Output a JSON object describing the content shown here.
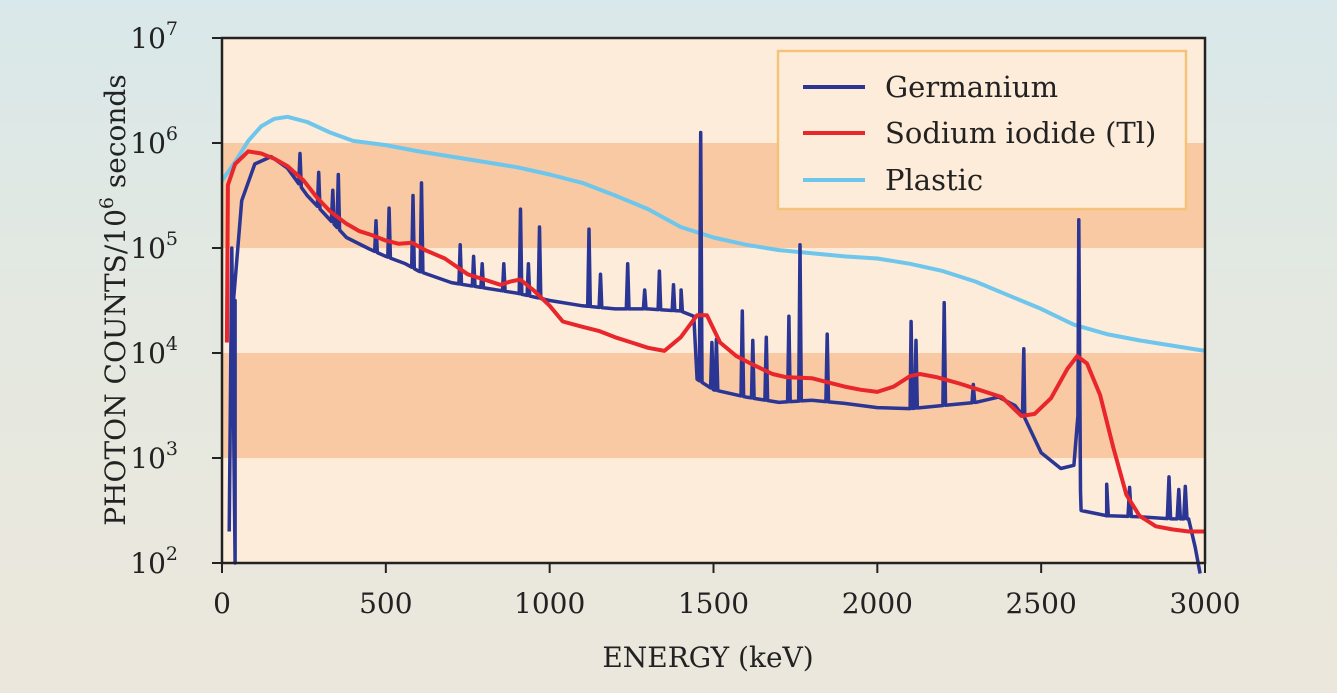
{
  "chart_data": {
    "type": "line",
    "title": "",
    "xlabel": "ENERGY (keV)",
    "ylabel_main": "PHOTON COUNTS/10",
    "ylabel_exp": "6",
    "ylabel_unit": " seconds",
    "xlim": [
      0,
      3000
    ],
    "ylim_log10": [
      2,
      7
    ],
    "y_scale": "log",
    "grid": "alternating horizontal bands",
    "x_ticks": [
      {
        "value": 0,
        "label": "0"
      },
      {
        "value": 500,
        "label": "500"
      },
      {
        "value": 1000,
        "label": "1000"
      },
      {
        "value": 1500,
        "label": "1500"
      },
      {
        "value": 2000,
        "label": "2000"
      },
      {
        "value": 2500,
        "label": "2500"
      },
      {
        "value": 3000,
        "label": "3000"
      }
    ],
    "y_ticks": [
      {
        "exp": 2,
        "base": "10",
        "sup": "2"
      },
      {
        "exp": 3,
        "base": "10",
        "sup": "3"
      },
      {
        "exp": 4,
        "base": "10",
        "sup": "4"
      },
      {
        "exp": 5,
        "base": "10",
        "sup": "5"
      },
      {
        "exp": 6,
        "base": "10",
        "sup": "6"
      },
      {
        "exp": 7,
        "base": "10",
        "sup": "7"
      }
    ],
    "legend_position": "top-right",
    "colors": {
      "germanium": "#2b3594",
      "sodium_iodide": "#e8262b",
      "plastic": "#6ec6ec",
      "band_dark": "#f8c9a3",
      "band_light": "#fdecd9",
      "legend_border": "#f5c27a"
    },
    "series": [
      {
        "name": "Germanium",
        "color": "#2b3594",
        "baseline": [
          [
            35,
            4.5
          ],
          [
            60,
            5.45
          ],
          [
            100,
            5.8
          ],
          [
            150,
            5.87
          ],
          [
            200,
            5.76
          ],
          [
            260,
            5.5
          ],
          [
            320,
            5.3
          ],
          [
            380,
            5.1
          ],
          [
            450,
            4.99
          ],
          [
            500,
            4.92
          ],
          [
            560,
            4.85
          ],
          [
            600,
            4.78
          ],
          [
            700,
            4.67
          ],
          [
            800,
            4.62
          ],
          [
            900,
            4.57
          ],
          [
            1000,
            4.5
          ],
          [
            1100,
            4.45
          ],
          [
            1200,
            4.42
          ],
          [
            1300,
            4.42
          ],
          [
            1400,
            4.4
          ],
          [
            1440,
            4.35
          ],
          [
            1450,
            3.75
          ],
          [
            1500,
            3.65
          ],
          [
            1600,
            3.58
          ],
          [
            1700,
            3.53
          ],
          [
            1800,
            3.55
          ],
          [
            1900,
            3.52
          ],
          [
            2000,
            3.48
          ],
          [
            2100,
            3.47
          ],
          [
            2200,
            3.5
          ],
          [
            2300,
            3.53
          ],
          [
            2370,
            3.58
          ],
          [
            2420,
            3.5
          ],
          [
            2450,
            3.38
          ],
          [
            2500,
            3.05
          ],
          [
            2560,
            2.9
          ],
          [
            2600,
            2.93
          ],
          [
            2612,
            3.4
          ],
          [
            2622,
            2.5
          ],
          [
            2700,
            2.45
          ],
          [
            2800,
            2.44
          ],
          [
            2900,
            2.42
          ],
          [
            2950,
            2.42
          ],
          [
            2970,
            2.15
          ],
          [
            2985,
            1.9
          ]
        ],
        "lines": [
          [
            238,
            5.9
          ],
          [
            295,
            5.72
          ],
          [
            338,
            5.55
          ],
          [
            355,
            5.7
          ],
          [
            470,
            5.26
          ],
          [
            510,
            5.38
          ],
          [
            583,
            5.5
          ],
          [
            609,
            5.62
          ],
          [
            727,
            5.03
          ],
          [
            768,
            4.92
          ],
          [
            794,
            4.85
          ],
          [
            860,
            4.85
          ],
          [
            911,
            5.37
          ],
          [
            935,
            4.85
          ],
          [
            969,
            5.2
          ],
          [
            1120,
            5.18
          ],
          [
            1155,
            4.75
          ],
          [
            1238,
            4.85
          ],
          [
            1290,
            4.6
          ],
          [
            1335,
            4.78
          ],
          [
            1378,
            4.65
          ],
          [
            1401,
            4.6
          ],
          [
            1461,
            6.1
          ],
          [
            1495,
            4.1
          ],
          [
            1509,
            4.13
          ],
          [
            1588,
            4.4
          ],
          [
            1620,
            4.12
          ],
          [
            1661,
            4.15
          ],
          [
            1730,
            4.35
          ],
          [
            1764,
            5.03
          ],
          [
            1847,
            4.18
          ],
          [
            2103,
            4.3
          ],
          [
            2118,
            4.12
          ],
          [
            2204,
            4.48
          ],
          [
            2293,
            3.7
          ],
          [
            2447,
            4.04
          ],
          [
            2615,
            5.27
          ],
          [
            2700,
            2.75
          ],
          [
            2770,
            2.72
          ],
          [
            2890,
            2.82
          ],
          [
            2920,
            2.7
          ],
          [
            2940,
            2.73
          ]
        ],
        "low_energy": [
          [
            40,
            2.0
          ],
          [
            30,
            5.0
          ],
          [
            22,
            2.3
          ]
        ]
      },
      {
        "name": "Sodium iodide (Tl)",
        "color": "#e8262b",
        "points": [
          [
            15,
            4.1
          ],
          [
            18,
            5.6
          ],
          [
            40,
            5.8
          ],
          [
            80,
            5.92
          ],
          [
            120,
            5.9
          ],
          [
            160,
            5.85
          ],
          [
            200,
            5.78
          ],
          [
            250,
            5.64
          ],
          [
            290,
            5.48
          ],
          [
            330,
            5.35
          ],
          [
            380,
            5.23
          ],
          [
            420,
            5.16
          ],
          [
            460,
            5.12
          ],
          [
            500,
            5.07
          ],
          [
            540,
            5.04
          ],
          [
            580,
            5.05
          ],
          [
            620,
            4.98
          ],
          [
            680,
            4.9
          ],
          [
            750,
            4.75
          ],
          [
            800,
            4.7
          ],
          [
            850,
            4.65
          ],
          [
            880,
            4.68
          ],
          [
            910,
            4.7
          ],
          [
            950,
            4.6
          ],
          [
            1000,
            4.45
          ],
          [
            1040,
            4.3
          ],
          [
            1100,
            4.25
          ],
          [
            1150,
            4.21
          ],
          [
            1200,
            4.15
          ],
          [
            1250,
            4.1
          ],
          [
            1300,
            4.05
          ],
          [
            1350,
            4.02
          ],
          [
            1400,
            4.15
          ],
          [
            1450,
            4.36
          ],
          [
            1480,
            4.36
          ],
          [
            1520,
            4.1
          ],
          [
            1570,
            3.97
          ],
          [
            1620,
            3.89
          ],
          [
            1680,
            3.8
          ],
          [
            1720,
            3.77
          ],
          [
            1800,
            3.76
          ],
          [
            1850,
            3.72
          ],
          [
            1900,
            3.68
          ],
          [
            1950,
            3.65
          ],
          [
            2000,
            3.63
          ],
          [
            2050,
            3.68
          ],
          [
            2100,
            3.78
          ],
          [
            2130,
            3.8
          ],
          [
            2180,
            3.77
          ],
          [
            2250,
            3.71
          ],
          [
            2320,
            3.64
          ],
          [
            2380,
            3.58
          ],
          [
            2440,
            3.4
          ],
          [
            2480,
            3.42
          ],
          [
            2530,
            3.57
          ],
          [
            2580,
            3.85
          ],
          [
            2610,
            3.97
          ],
          [
            2640,
            3.9
          ],
          [
            2680,
            3.6
          ],
          [
            2720,
            3.1
          ],
          [
            2760,
            2.65
          ],
          [
            2800,
            2.45
          ],
          [
            2850,
            2.35
          ],
          [
            2900,
            2.32
          ],
          [
            2950,
            2.3
          ],
          [
            3000,
            2.3
          ]
        ]
      },
      {
        "name": "Plastic",
        "color": "#6ec6ec",
        "points": [
          [
            0,
            5.64
          ],
          [
            40,
            5.82
          ],
          [
            80,
            6.02
          ],
          [
            120,
            6.16
          ],
          [
            160,
            6.23
          ],
          [
            200,
            6.25
          ],
          [
            260,
            6.2
          ],
          [
            330,
            6.1
          ],
          [
            400,
            6.02
          ],
          [
            500,
            5.98
          ],
          [
            600,
            5.92
          ],
          [
            700,
            5.87
          ],
          [
            800,
            5.82
          ],
          [
            900,
            5.77
          ],
          [
            1000,
            5.7
          ],
          [
            1100,
            5.62
          ],
          [
            1200,
            5.5
          ],
          [
            1300,
            5.37
          ],
          [
            1400,
            5.2
          ],
          [
            1500,
            5.1
          ],
          [
            1600,
            5.03
          ],
          [
            1700,
            4.98
          ],
          [
            1800,
            4.95
          ],
          [
            1900,
            4.92
          ],
          [
            2000,
            4.9
          ],
          [
            2100,
            4.85
          ],
          [
            2200,
            4.78
          ],
          [
            2300,
            4.68
          ],
          [
            2400,
            4.55
          ],
          [
            2500,
            4.42
          ],
          [
            2600,
            4.27
          ],
          [
            2700,
            4.18
          ],
          [
            2800,
            4.12
          ],
          [
            2900,
            4.07
          ],
          [
            3000,
            4.02
          ]
        ]
      }
    ]
  },
  "legend": {
    "items": [
      {
        "label": "Germanium",
        "color": "#2b3594"
      },
      {
        "label": "Sodium iodide (Tl)",
        "color": "#e8262b"
      },
      {
        "label": "Plastic",
        "color": "#6ec6ec"
      }
    ]
  }
}
